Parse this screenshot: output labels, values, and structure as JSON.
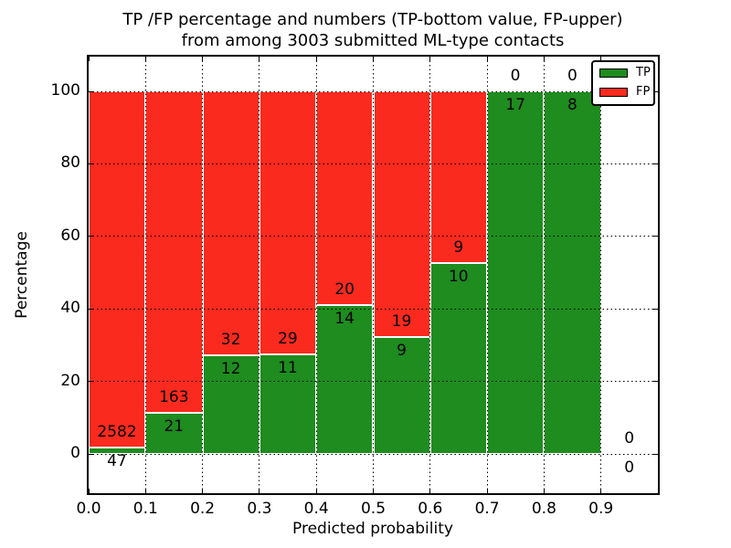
{
  "chart_data": {
    "type": "bar",
    "stacked": true,
    "title": "TP /FP percentage and numbers (TP-bottom value, FP-upper)",
    "subtitle": "from among 3003 submitted ML-type contacts",
    "xlabel": "Predicted probability",
    "ylabel": "Percentage",
    "x_tick_labels": [
      "0.0",
      "0.1",
      "0.2",
      "0.3",
      "0.4",
      "0.5",
      "0.6",
      "0.7",
      "0.8",
      "0.9"
    ],
    "y_ticks": [
      0,
      20,
      40,
      60,
      80,
      100
    ],
    "xlim": [
      0.0,
      1.0
    ],
    "ylim": [
      -10.8,
      109.6
    ],
    "grid": "dotted black, both axes, drawn over bars",
    "legend_position": "upper right",
    "categories": [
      "0.0-0.1",
      "0.1-0.2",
      "0.2-0.3",
      "0.3-0.4",
      "0.4-0.5",
      "0.5-0.6",
      "0.6-0.7",
      "0.7-0.8",
      "0.8-0.9",
      "0.9-1.0"
    ],
    "series": [
      {
        "name": "TP",
        "color": "#1e8c1e",
        "counts": [
          47,
          21,
          12,
          11,
          14,
          9,
          10,
          17,
          8,
          0
        ]
      },
      {
        "name": "FP",
        "color": "#fa2a1e",
        "counts": [
          2582,
          163,
          32,
          29,
          20,
          19,
          9,
          0,
          0,
          0
        ]
      }
    ],
    "percent_tp_bottom": [
      1.8,
      11.4,
      27.3,
      27.5,
      41.2,
      32.1,
      52.6,
      100.0,
      100.0,
      0.0
    ],
    "bar_value_labels": "TP count printed just below green top, FP count just above it",
    "total_contacts": 3003
  }
}
